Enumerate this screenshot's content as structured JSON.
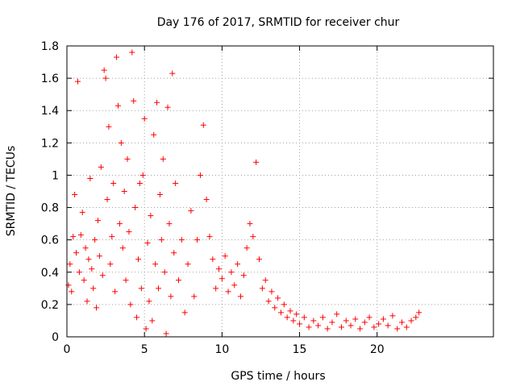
{
  "chart_data": {
    "type": "scatter",
    "title": "Day 176 of 2017, SRMTID for receiver chur",
    "xlabel": "GPS time / hours",
    "ylabel": "SRMTID / TECUs",
    "xlim": [
      0,
      27.5
    ],
    "ylim": [
      0,
      1.8
    ],
    "xticks": [
      0,
      5,
      10,
      15,
      20
    ],
    "xtick_labels": [
      "0",
      "5",
      "10",
      "15",
      "20"
    ],
    "yticks": [
      0,
      0.2,
      0.4,
      0.6,
      0.8,
      1.0,
      1.2,
      1.4,
      1.6,
      1.8
    ],
    "ytick_labels": [
      "0",
      "0.2",
      "0.4",
      "0.6",
      "0.8",
      "1",
      "1.2",
      "1.4",
      "1.6",
      "1.8"
    ],
    "grid": true,
    "marker": "+",
    "series": [
      {
        "name": "SRMTID",
        "color": "#ff0000",
        "points": [
          [
            0.1,
            0.32
          ],
          [
            0.2,
            0.45
          ],
          [
            0.3,
            0.28
          ],
          [
            0.4,
            0.62
          ],
          [
            0.5,
            0.88
          ],
          [
            0.6,
            0.52
          ],
          [
            0.7,
            1.58
          ],
          [
            0.8,
            0.4
          ],
          [
            0.9,
            0.63
          ],
          [
            1.0,
            0.77
          ],
          [
            1.1,
            0.35
          ],
          [
            1.2,
            0.55
          ],
          [
            1.3,
            0.22
          ],
          [
            1.4,
            0.48
          ],
          [
            1.5,
            0.98
          ],
          [
            1.6,
            0.42
          ],
          [
            1.7,
            0.3
          ],
          [
            1.8,
            0.6
          ],
          [
            1.9,
            0.18
          ],
          [
            2.0,
            0.72
          ],
          [
            2.1,
            0.5
          ],
          [
            2.2,
            1.05
          ],
          [
            2.3,
            0.38
          ],
          [
            2.4,
            1.65
          ],
          [
            2.5,
            1.6
          ],
          [
            2.6,
            0.85
          ],
          [
            2.7,
            1.3
          ],
          [
            2.8,
            0.45
          ],
          [
            2.9,
            0.62
          ],
          [
            3.0,
            0.95
          ],
          [
            3.1,
            0.28
          ],
          [
            3.2,
            1.73
          ],
          [
            3.3,
            1.43
          ],
          [
            3.4,
            0.7
          ],
          [
            3.5,
            1.2
          ],
          [
            3.6,
            0.55
          ],
          [
            3.7,
            0.9
          ],
          [
            3.8,
            0.35
          ],
          [
            3.9,
            1.1
          ],
          [
            4.0,
            0.65
          ],
          [
            4.1,
            0.2
          ],
          [
            4.2,
            1.76
          ],
          [
            4.3,
            1.46
          ],
          [
            4.4,
            0.8
          ],
          [
            4.5,
            0.12
          ],
          [
            4.6,
            0.48
          ],
          [
            4.7,
            0.95
          ],
          [
            4.8,
            0.3
          ],
          [
            4.9,
            1.0
          ],
          [
            5.0,
            1.35
          ],
          [
            5.1,
            0.05
          ],
          [
            5.2,
            0.58
          ],
          [
            5.3,
            0.22
          ],
          [
            5.4,
            0.75
          ],
          [
            5.5,
            0.1
          ],
          [
            5.6,
            1.25
          ],
          [
            5.7,
            0.45
          ],
          [
            5.8,
            1.45
          ],
          [
            5.9,
            0.3
          ],
          [
            6.0,
            0.88
          ],
          [
            6.1,
            0.6
          ],
          [
            6.2,
            1.1
          ],
          [
            6.3,
            0.4
          ],
          [
            6.4,
            0.02
          ],
          [
            6.5,
            1.42
          ],
          [
            6.6,
            0.7
          ],
          [
            6.7,
            0.25
          ],
          [
            6.8,
            1.63
          ],
          [
            6.9,
            0.52
          ],
          [
            7.0,
            0.95
          ],
          [
            7.2,
            0.35
          ],
          [
            7.4,
            0.6
          ],
          [
            7.6,
            0.15
          ],
          [
            7.8,
            0.45
          ],
          [
            8.0,
            0.78
          ],
          [
            8.2,
            0.25
          ],
          [
            8.4,
            0.6
          ],
          [
            8.6,
            1.0
          ],
          [
            8.8,
            1.31
          ],
          [
            9.0,
            0.85
          ],
          [
            9.2,
            0.62
          ],
          [
            9.4,
            0.48
          ],
          [
            9.6,
            0.3
          ],
          [
            9.8,
            0.42
          ],
          [
            10.0,
            0.36
          ],
          [
            10.2,
            0.5
          ],
          [
            10.4,
            0.28
          ],
          [
            10.6,
            0.4
          ],
          [
            10.8,
            0.32
          ],
          [
            11.0,
            0.45
          ],
          [
            11.2,
            0.25
          ],
          [
            11.4,
            0.38
          ],
          [
            11.6,
            0.55
          ],
          [
            11.8,
            0.7
          ],
          [
            12.0,
            0.62
          ],
          [
            12.2,
            1.08
          ],
          [
            12.4,
            0.48
          ],
          [
            12.6,
            0.3
          ],
          [
            12.8,
            0.35
          ],
          [
            13.0,
            0.22
          ],
          [
            13.2,
            0.28
          ],
          [
            13.4,
            0.18
          ],
          [
            13.6,
            0.24
          ],
          [
            13.8,
            0.15
          ],
          [
            14.0,
            0.2
          ],
          [
            14.2,
            0.12
          ],
          [
            14.4,
            0.16
          ],
          [
            14.6,
            0.1
          ],
          [
            14.8,
            0.14
          ],
          [
            15.0,
            0.08
          ],
          [
            15.3,
            0.12
          ],
          [
            15.6,
            0.06
          ],
          [
            15.9,
            0.1
          ],
          [
            16.2,
            0.07
          ],
          [
            16.5,
            0.12
          ],
          [
            16.8,
            0.05
          ],
          [
            17.1,
            0.09
          ],
          [
            17.4,
            0.14
          ],
          [
            17.7,
            0.06
          ],
          [
            18.0,
            0.1
          ],
          [
            18.3,
            0.07
          ],
          [
            18.6,
            0.11
          ],
          [
            18.9,
            0.05
          ],
          [
            19.2,
            0.09
          ],
          [
            19.5,
            0.12
          ],
          [
            19.8,
            0.06
          ],
          [
            20.1,
            0.08
          ],
          [
            20.4,
            0.11
          ],
          [
            20.7,
            0.07
          ],
          [
            21.0,
            0.13
          ],
          [
            21.3,
            0.05
          ],
          [
            21.6,
            0.09
          ],
          [
            21.9,
            0.06
          ],
          [
            22.2,
            0.1
          ],
          [
            22.5,
            0.12
          ],
          [
            22.7,
            0.15
          ]
        ]
      }
    ]
  }
}
